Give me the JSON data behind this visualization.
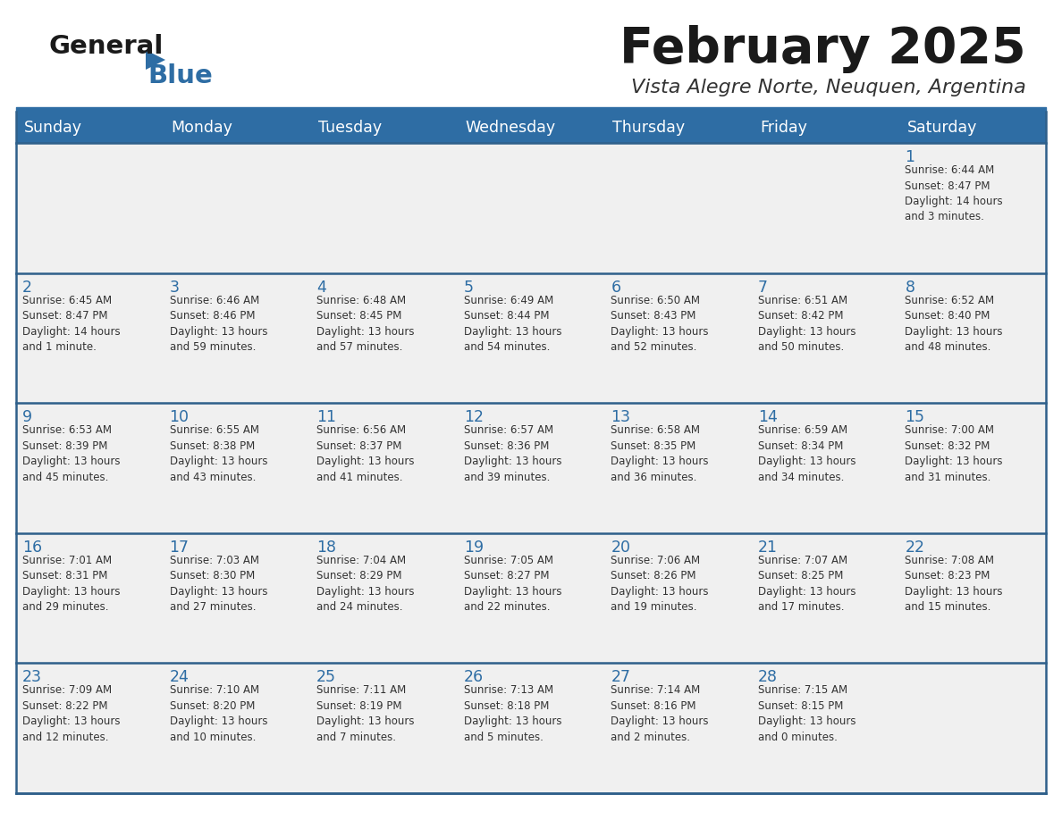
{
  "title": "February 2025",
  "subtitle": "Vista Alegre Norte, Neuquen, Argentina",
  "header_bg": "#2E6DA4",
  "header_text_color": "#FFFFFF",
  "cell_bg": "#F0F0F0",
  "day_number_color": "#2E6DA4",
  "info_text_color": "#333333",
  "title_color": "#1a1a1a",
  "subtitle_color": "#333333",
  "row_separator_color": "#2E5F8A",
  "days_of_week": [
    "Sunday",
    "Monday",
    "Tuesday",
    "Wednesday",
    "Thursday",
    "Friday",
    "Saturday"
  ],
  "weeks": [
    [
      {
        "day": "",
        "info": ""
      },
      {
        "day": "",
        "info": ""
      },
      {
        "day": "",
        "info": ""
      },
      {
        "day": "",
        "info": ""
      },
      {
        "day": "",
        "info": ""
      },
      {
        "day": "",
        "info": ""
      },
      {
        "day": "1",
        "info": "Sunrise: 6:44 AM\nSunset: 8:47 PM\nDaylight: 14 hours\nand 3 minutes."
      }
    ],
    [
      {
        "day": "2",
        "info": "Sunrise: 6:45 AM\nSunset: 8:47 PM\nDaylight: 14 hours\nand 1 minute."
      },
      {
        "day": "3",
        "info": "Sunrise: 6:46 AM\nSunset: 8:46 PM\nDaylight: 13 hours\nand 59 minutes."
      },
      {
        "day": "4",
        "info": "Sunrise: 6:48 AM\nSunset: 8:45 PM\nDaylight: 13 hours\nand 57 minutes."
      },
      {
        "day": "5",
        "info": "Sunrise: 6:49 AM\nSunset: 8:44 PM\nDaylight: 13 hours\nand 54 minutes."
      },
      {
        "day": "6",
        "info": "Sunrise: 6:50 AM\nSunset: 8:43 PM\nDaylight: 13 hours\nand 52 minutes."
      },
      {
        "day": "7",
        "info": "Sunrise: 6:51 AM\nSunset: 8:42 PM\nDaylight: 13 hours\nand 50 minutes."
      },
      {
        "day": "8",
        "info": "Sunrise: 6:52 AM\nSunset: 8:40 PM\nDaylight: 13 hours\nand 48 minutes."
      }
    ],
    [
      {
        "day": "9",
        "info": "Sunrise: 6:53 AM\nSunset: 8:39 PM\nDaylight: 13 hours\nand 45 minutes."
      },
      {
        "day": "10",
        "info": "Sunrise: 6:55 AM\nSunset: 8:38 PM\nDaylight: 13 hours\nand 43 minutes."
      },
      {
        "day": "11",
        "info": "Sunrise: 6:56 AM\nSunset: 8:37 PM\nDaylight: 13 hours\nand 41 minutes."
      },
      {
        "day": "12",
        "info": "Sunrise: 6:57 AM\nSunset: 8:36 PM\nDaylight: 13 hours\nand 39 minutes."
      },
      {
        "day": "13",
        "info": "Sunrise: 6:58 AM\nSunset: 8:35 PM\nDaylight: 13 hours\nand 36 minutes."
      },
      {
        "day": "14",
        "info": "Sunrise: 6:59 AM\nSunset: 8:34 PM\nDaylight: 13 hours\nand 34 minutes."
      },
      {
        "day": "15",
        "info": "Sunrise: 7:00 AM\nSunset: 8:32 PM\nDaylight: 13 hours\nand 31 minutes."
      }
    ],
    [
      {
        "day": "16",
        "info": "Sunrise: 7:01 AM\nSunset: 8:31 PM\nDaylight: 13 hours\nand 29 minutes."
      },
      {
        "day": "17",
        "info": "Sunrise: 7:03 AM\nSunset: 8:30 PM\nDaylight: 13 hours\nand 27 minutes."
      },
      {
        "day": "18",
        "info": "Sunrise: 7:04 AM\nSunset: 8:29 PM\nDaylight: 13 hours\nand 24 minutes."
      },
      {
        "day": "19",
        "info": "Sunrise: 7:05 AM\nSunset: 8:27 PM\nDaylight: 13 hours\nand 22 minutes."
      },
      {
        "day": "20",
        "info": "Sunrise: 7:06 AM\nSunset: 8:26 PM\nDaylight: 13 hours\nand 19 minutes."
      },
      {
        "day": "21",
        "info": "Sunrise: 7:07 AM\nSunset: 8:25 PM\nDaylight: 13 hours\nand 17 minutes."
      },
      {
        "day": "22",
        "info": "Sunrise: 7:08 AM\nSunset: 8:23 PM\nDaylight: 13 hours\nand 15 minutes."
      }
    ],
    [
      {
        "day": "23",
        "info": "Sunrise: 7:09 AM\nSunset: 8:22 PM\nDaylight: 13 hours\nand 12 minutes."
      },
      {
        "day": "24",
        "info": "Sunrise: 7:10 AM\nSunset: 8:20 PM\nDaylight: 13 hours\nand 10 minutes."
      },
      {
        "day": "25",
        "info": "Sunrise: 7:11 AM\nSunset: 8:19 PM\nDaylight: 13 hours\nand 7 minutes."
      },
      {
        "day": "26",
        "info": "Sunrise: 7:13 AM\nSunset: 8:18 PM\nDaylight: 13 hours\nand 5 minutes."
      },
      {
        "day": "27",
        "info": "Sunrise: 7:14 AM\nSunset: 8:16 PM\nDaylight: 13 hours\nand 2 minutes."
      },
      {
        "day": "28",
        "info": "Sunrise: 7:15 AM\nSunset: 8:15 PM\nDaylight: 13 hours\nand 0 minutes."
      },
      {
        "day": "",
        "info": ""
      }
    ]
  ],
  "figsize": [
    11.88,
    9.18
  ],
  "dpi": 100
}
